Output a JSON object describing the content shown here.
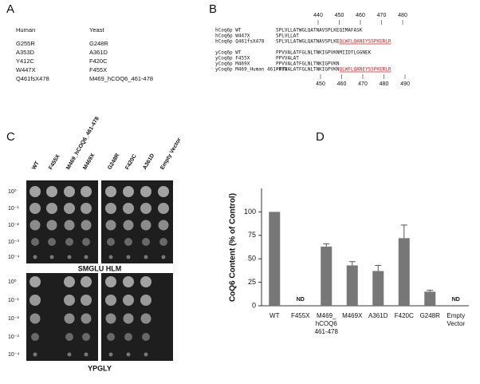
{
  "panel_a": {
    "label": "A",
    "headers": [
      "Human",
      "Yeast"
    ],
    "rows": [
      [
        "G255R",
        "G248R"
      ],
      [
        "A353D",
        "A361D"
      ],
      [
        "Y412C",
        "F420C"
      ],
      [
        "W447X",
        "F455X"
      ],
      [
        "Q461fsX478",
        "M469_hCOQ6_461-478"
      ]
    ]
  },
  "panel_b": {
    "label": "B",
    "ruler_top": [
      440,
      450,
      460,
      470,
      480
    ],
    "ruler_bottom": [
      450,
      460,
      470,
      480,
      490
    ],
    "rows": [
      {
        "name": "hCoq6p WT",
        "seq": "SPLVLLATWGLQATNAVSPLKEQIMAFASK"
      },
      {
        "name": "hCoq6p W447X",
        "seq": "SPLVLLAT"
      },
      {
        "name": "hCoq6p Q461fsX478",
        "seq": "SPLVLLATWGLQATNAVSPLKE",
        "insert": "QLWFLQANEYSSPKERLR"
      },
      {
        "name": "yCoq6p WT",
        "seq": "PPVVALATFGLNLTNKIGPVKNMIIDTLGGNEK"
      },
      {
        "name": "yCoq6p F455X",
        "seq": "PPVVALAT"
      },
      {
        "name": "yCoq6p M469X",
        "seq": "PPVVALATFGLNLTNKIGPVKN"
      },
      {
        "name": "yCoq6p M469_Human 461-478",
        "seq": "PPVVALATFGLNLTNKIGPVKN",
        "insert": "QLWFLQANEYSSPKERLR"
      }
    ]
  },
  "panel_c": {
    "label": "C",
    "columns": [
      "WT",
      "F455X",
      "M469_hCOQ6_461-478",
      "M469X",
      "G248R",
      "F420C",
      "A361D",
      "Empty Vector"
    ],
    "dilutions": [
      "10⁰",
      "10⁻¹",
      "10⁻²",
      "10⁻³",
      "10⁻⁴"
    ],
    "plates": [
      "SMGLU HLM",
      "YPGLY"
    ]
  },
  "panel_d_label": "D",
  "chart_data": {
    "type": "bar",
    "ylabel": "CoQ6 Content (% of Control)",
    "categories": [
      "WT",
      "F455X",
      "M469_ hCOQ6 461-478",
      "M469X",
      "A361D",
      "F420C",
      "G248R",
      "Empty Vector"
    ],
    "values": [
      100,
      null,
      63,
      43,
      37,
      72,
      15,
      null
    ],
    "errors": [
      null,
      null,
      3,
      4,
      6,
      14,
      1.5,
      null
    ],
    "value_labels": [
      null,
      "ND",
      null,
      null,
      null,
      null,
      null,
      "ND"
    ],
    "color": "#777777",
    "ylim": [
      0,
      125
    ],
    "yticks": [
      0,
      25,
      50,
      75,
      100
    ]
  }
}
